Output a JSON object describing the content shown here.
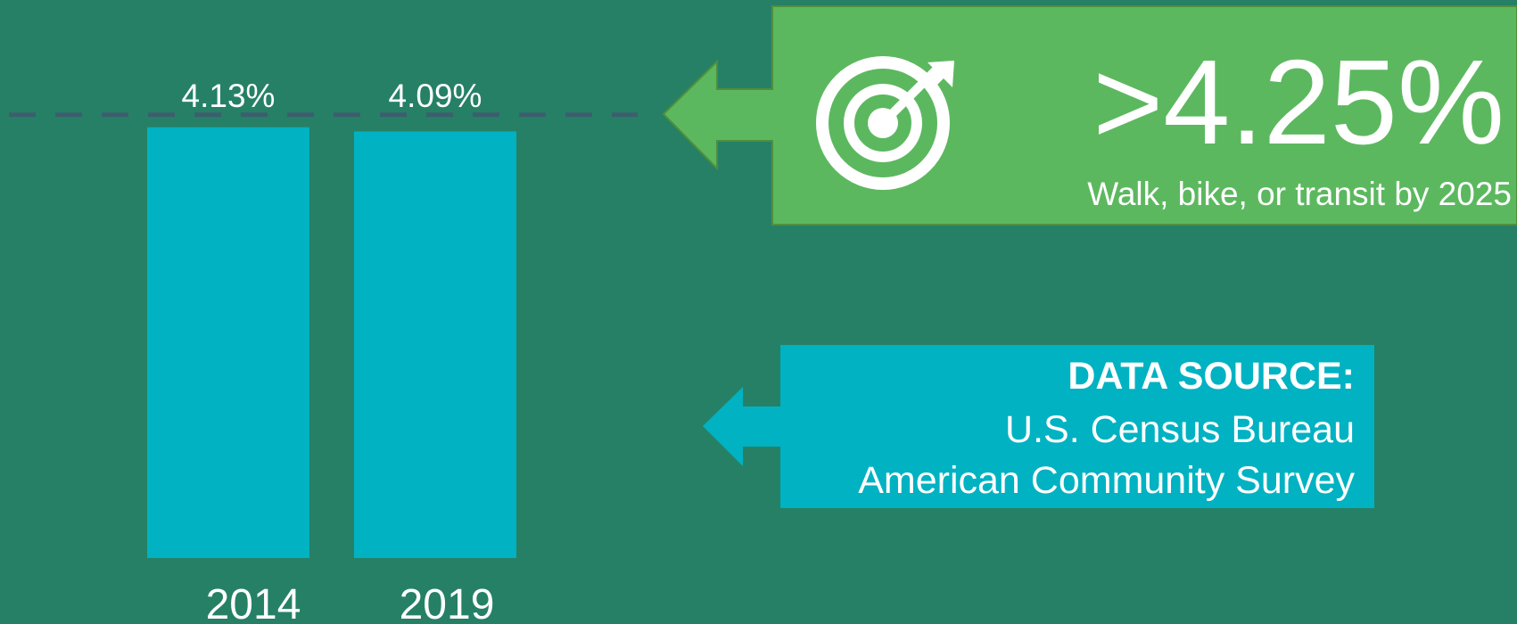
{
  "chart_data": {
    "type": "bar",
    "categories": [
      "2014",
      "2019"
    ],
    "values": [
      4.13,
      4.09
    ],
    "value_labels": [
      "4.13%",
      "4.09%"
    ],
    "color": "#00b2c2",
    "ylim": [
      0,
      5.35
    ],
    "target": {
      "value": 4.25,
      "label": ">4.25%"
    },
    "target_caption": "Walk, bike, or transit by 2025",
    "source": {
      "heading": "DATA SOURCE:",
      "lines": [
        "U.S. Census Bureau",
        "American Community Survey"
      ]
    }
  }
}
